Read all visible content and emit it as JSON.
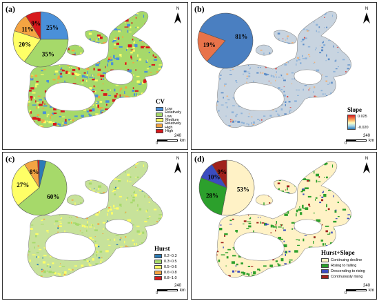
{
  "panels": {
    "a": {
      "label": "(a)",
      "legend_title": "CV",
      "legend_items": [
        {
          "label": "Low",
          "color": "#4a90d9"
        },
        {
          "label": "Relatively Low",
          "color": "#a6d96a"
        },
        {
          "label": "Medium",
          "color": "#ffff66"
        },
        {
          "label": "Relatively High",
          "color": "#f4a442"
        },
        {
          "label": "High",
          "color": "#d7191c"
        }
      ],
      "pie": [
        {
          "pct": 25,
          "label": "25%",
          "color": "#4a90d9"
        },
        {
          "pct": 35,
          "label": "35%",
          "color": "#a6d96a"
        },
        {
          "pct": 20,
          "label": "20%",
          "color": "#ffff66"
        },
        {
          "pct": 11,
          "label": "11%",
          "color": "#f4a442"
        },
        {
          "pct": 9,
          "label": "9%",
          "color": "#d7191c"
        }
      ]
    },
    "b": {
      "label": "(b)",
      "legend_title": "Slope",
      "grad_max": "0.025",
      "grad_min": "-0.020",
      "pie": [
        {
          "pct": 81,
          "label": "81%",
          "color": "#4a7fc1"
        },
        {
          "pct": 19,
          "label": "19%",
          "color": "#e8734a"
        }
      ]
    },
    "c": {
      "label": "(c)",
      "legend_title": "Hurst",
      "legend_items": [
        {
          "label": "0.2~0.3",
          "color": "#2c7bb6"
        },
        {
          "label": "0.3~0.5",
          "color": "#a6d96a"
        },
        {
          "label": "0.5~0.6",
          "color": "#ffff66"
        },
        {
          "label": "0.6~0.8",
          "color": "#f4a442"
        },
        {
          "label": "0.8~1.0",
          "color": "#d7191c"
        }
      ],
      "pie": [
        {
          "pct": 4,
          "label": "4%",
          "color": "#2c7bb6"
        },
        {
          "pct": 60,
          "label": "60%",
          "color": "#a6d96a"
        },
        {
          "pct": 27,
          "label": "27%",
          "color": "#ffff66"
        },
        {
          "pct": 8,
          "label": "8%",
          "color": "#f4a442"
        },
        {
          "pct": 1,
          "label": "1%",
          "color": "#d7191c"
        }
      ]
    },
    "d": {
      "label": "(d)",
      "legend_title": "Hurst+Slope",
      "legend_items": [
        {
          "label": "Continuing decline",
          "color": "#fff2c6"
        },
        {
          "label": "Rising to falling",
          "color": "#2ca02c"
        },
        {
          "label": "Descending to rising",
          "color": "#3b4cc0"
        },
        {
          "label": "Continuously rising",
          "color": "#a0221c"
        }
      ],
      "pie": [
        {
          "pct": 53,
          "label": "53%",
          "color": "#fff2c6"
        },
        {
          "pct": 28,
          "label": "28%",
          "color": "#2ca02c"
        },
        {
          "pct": 10,
          "label": "10%",
          "color": "#3b4cc0"
        },
        {
          "pct": 9,
          "label": "9%",
          "color": "#a0221c"
        }
      ]
    }
  },
  "north_label": "N",
  "scale": {
    "start": "0",
    "end": "240",
    "unit": "km"
  }
}
